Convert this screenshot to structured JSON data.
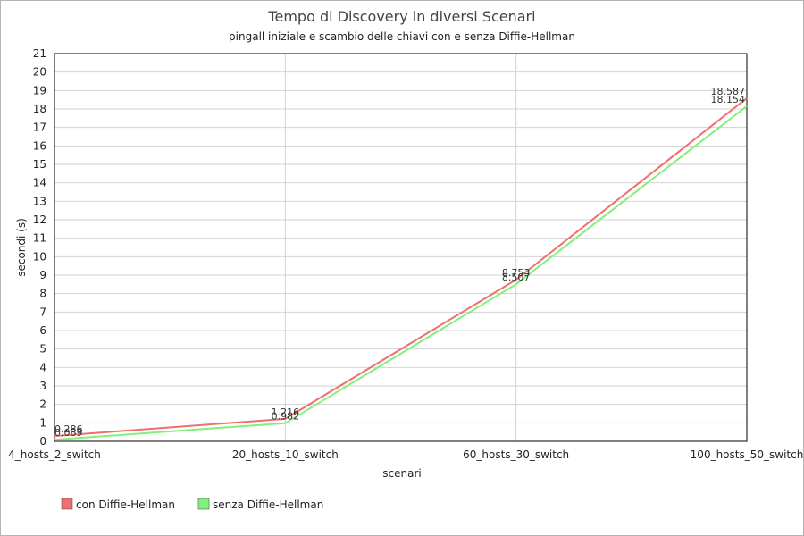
{
  "chart_data": {
    "type": "line",
    "title": "Tempo di Discovery in diversi Scenari",
    "subtitle": "pingall iniziale e scambio delle chiavi con e senza Diffie-Hellman",
    "xlabel": "scenari",
    "ylabel": "secondi (s)",
    "categories": [
      "4_hosts_2_switch",
      "20_hosts_10_switch",
      "60_hosts_30_switch",
      "100_hosts_50_switch"
    ],
    "ylim": [
      0,
      21
    ],
    "yticks": [
      "0",
      "1",
      "2",
      "3",
      "4",
      "5",
      "6",
      "7",
      "8",
      "9",
      "10",
      "11",
      "12",
      "13",
      "14",
      "15",
      "16",
      "17",
      "18",
      "19",
      "20",
      "21"
    ],
    "grid": true,
    "legend_position": "bottom-left",
    "series": [
      {
        "name": "con Diffie-Hellman",
        "color": "#f06e6e",
        "values": [
          0.286,
          1.216,
          8.753,
          18.587
        ],
        "labels": [
          "0.286",
          "1.216",
          "8.753",
          "18.587"
        ]
      },
      {
        "name": "senza Diffie-Hellman",
        "color": "#82f07a",
        "values": [
          0.089,
          0.982,
          8.507,
          18.154
        ],
        "labels": [
          "0.089",
          "0.982",
          "8.507",
          "18.154"
        ]
      }
    ]
  }
}
